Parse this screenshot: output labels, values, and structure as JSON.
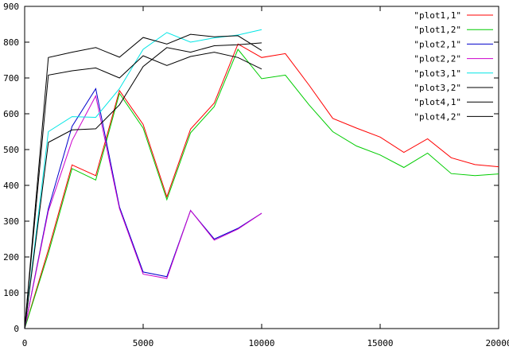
{
  "chart_data": {
    "type": "line",
    "title": "",
    "xlabel": "",
    "ylabel": "",
    "xlim": [
      0,
      20000
    ],
    "ylim": [
      0,
      900
    ],
    "x_ticks": [
      0,
      5000,
      10000,
      15000,
      20000
    ],
    "y_ticks": [
      0,
      100,
      200,
      300,
      400,
      500,
      600,
      700,
      800,
      900
    ],
    "grid": false,
    "legend_position": "top-right",
    "series": [
      {
        "name": "\"plot1,1\"",
        "color": "#ff0000",
        "x": [
          0,
          1000,
          2000,
          3000,
          4000,
          5000,
          6000,
          7000,
          8000,
          9000,
          10000,
          11000,
          12000,
          13000,
          14000,
          15000,
          16000,
          17000,
          18000,
          19000,
          20000
        ],
        "y": [
          0,
          220,
          457,
          427,
          665,
          570,
          368,
          557,
          630,
          795,
          757,
          768,
          680,
          587,
          560,
          535,
          492,
          530,
          477,
          458,
          452
        ]
      },
      {
        "name": "\"plot1,2\"",
        "color": "#00cc00",
        "x": [
          0,
          1000,
          2000,
          3000,
          4000,
          5000,
          6000,
          7000,
          8000,
          9000,
          10000,
          11000,
          12000,
          13000,
          14000,
          15000,
          16000,
          17000,
          18000,
          19000,
          20000
        ],
        "y": [
          0,
          210,
          447,
          415,
          657,
          560,
          360,
          547,
          620,
          780,
          698,
          708,
          625,
          550,
          510,
          485,
          450,
          490,
          433,
          427,
          432
        ]
      },
      {
        "name": "\"plot2,1\"",
        "color": "#0000cc",
        "x": [
          0,
          1000,
          2000,
          3000,
          4000,
          5000,
          6000,
          7000,
          8000,
          9000,
          10000
        ],
        "y": [
          0,
          335,
          565,
          670,
          340,
          158,
          145,
          330,
          250,
          280,
          322
        ]
      },
      {
        "name": "\"plot2,2\"",
        "color": "#cc00cc",
        "x": [
          0,
          1000,
          2000,
          3000,
          4000,
          5000,
          6000,
          7000,
          8000,
          9000,
          10000
        ],
        "y": [
          0,
          328,
          525,
          650,
          335,
          152,
          140,
          330,
          247,
          278,
          322
        ]
      },
      {
        "name": "\"plot3,1\"",
        "color": "#00e5e5",
        "x": [
          0,
          1000,
          2000,
          3000,
          4000,
          5000,
          6000,
          7000,
          8000,
          9000,
          10000
        ],
        "y": [
          0,
          550,
          592,
          590,
          670,
          780,
          827,
          800,
          812,
          820,
          835
        ]
      },
      {
        "name": "\"plot3,2\"",
        "color": "#000000",
        "x": [
          0,
          1000,
          2000,
          3000,
          4000,
          5000,
          6000,
          7000,
          8000,
          9000,
          10000
        ],
        "y": [
          0,
          757,
          772,
          785,
          758,
          813,
          795,
          822,
          815,
          818,
          777
        ]
      },
      {
        "name": "\"plot4,1\"",
        "color": "#000000",
        "x": [
          0,
          1000,
          2000,
          3000,
          4000,
          5000,
          6000,
          7000,
          8000,
          9000,
          10000
        ],
        "y": [
          0,
          708,
          720,
          728,
          700,
          762,
          735,
          760,
          772,
          757,
          725
        ]
      },
      {
        "name": "\"plot4,2\"",
        "color": "#000000",
        "x": [
          0,
          1000,
          2000,
          3000,
          4000,
          5000,
          6000,
          7000,
          8000,
          9000,
          10000
        ],
        "y": [
          0,
          520,
          555,
          558,
          625,
          732,
          785,
          772,
          790,
          793,
          798
        ]
      }
    ]
  }
}
